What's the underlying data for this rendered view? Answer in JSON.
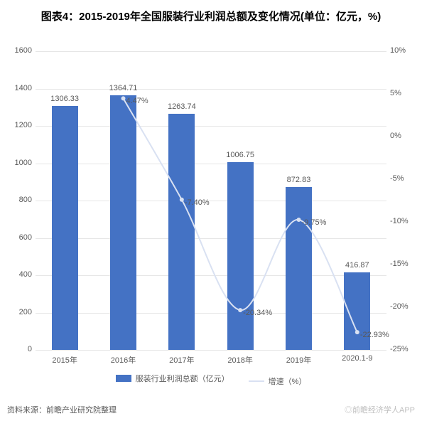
{
  "title": "图表4：2015-2019年全国服装行业利润总额及变化情况(单位：亿元，%)",
  "title_fontsize": 15,
  "title_color": "#000000",
  "chart": {
    "type": "bar+line",
    "categories": [
      "2015年",
      "2016年",
      "2017年",
      "2018年",
      "2019年",
      "2020.1-9"
    ],
    "bar": {
      "label": "服装行业利润总额（亿元）",
      "values": [
        1306.33,
        1364.71,
        1263.74,
        1006.75,
        872.83,
        416.87
      ],
      "color": "#4472c4",
      "width_ratio": 0.45,
      "ylim": [
        0,
        1600
      ],
      "ytick_step": 200
    },
    "line": {
      "label": "增速（%）",
      "values": [
        null,
        4.47,
        -7.4,
        -20.34,
        -9.75,
        -22.93
      ],
      "display_labels": [
        "",
        "4.47%",
        "-7.40%",
        "-20.34%",
        "-9.75%",
        "-22.93%"
      ],
      "color": "#d9e1f2",
      "marker_color": "#d9e1f2",
      "marker_size": 5,
      "line_width": 2,
      "ylim": [
        -25,
        10
      ],
      "ytick_step": 5
    },
    "background_color": "#ffffff",
    "grid_color": "#e6e6e6",
    "axis_label_color": "#595959",
    "axis_label_fontsize": 11
  },
  "legend": {
    "items": [
      {
        "kind": "bar",
        "label": "服装行业利润总额（亿元）",
        "color": "#4472c4"
      },
      {
        "kind": "line",
        "label": "增速（%）",
        "color": "#d9e1f2"
      }
    ]
  },
  "source_text": "资料来源：前瞻产业研究院整理",
  "watermark_text": "◎前瞻经济学人APP",
  "footer_color": "#595959",
  "watermark_color": "#bfbfbf"
}
